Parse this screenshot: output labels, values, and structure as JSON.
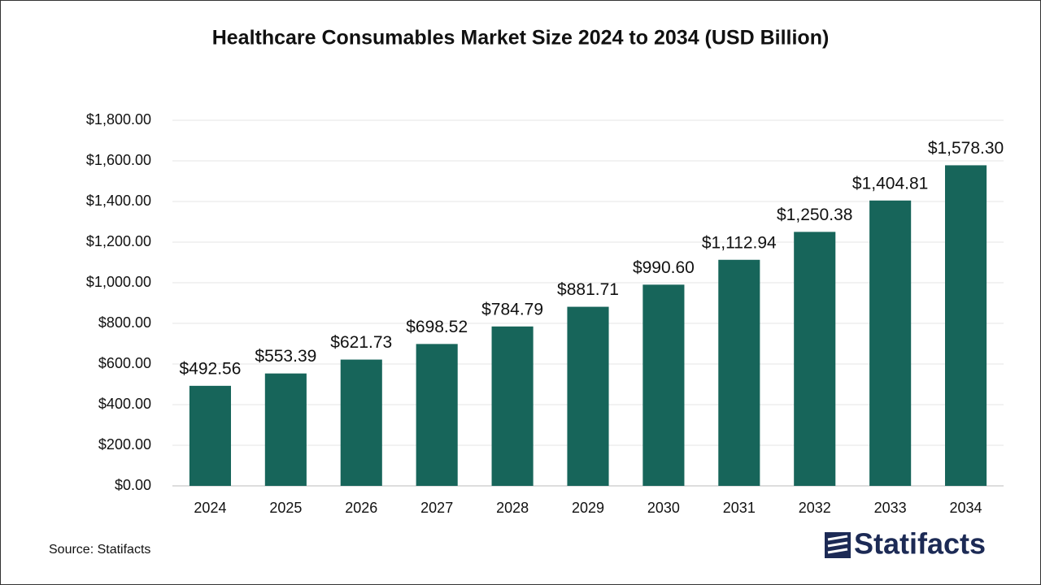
{
  "chart_data": {
    "type": "bar",
    "title": "Healthcare Consumables Market Size 2024 to 2034 (USD Billion)",
    "categories": [
      "2024",
      "2025",
      "2026",
      "2027",
      "2028",
      "2029",
      "2030",
      "2031",
      "2032",
      "2033",
      "2034"
    ],
    "values": [
      492.56,
      553.39,
      621.73,
      698.52,
      784.79,
      881.71,
      990.6,
      1112.94,
      1250.38,
      1404.81,
      1578.3
    ],
    "value_labels": [
      "$492.56",
      "$553.39",
      "$621.73",
      "$698.52",
      "$784.79",
      "$881.71",
      "$990.60",
      "$1,112.94",
      "$1,250.38",
      "$1,404.81",
      "$1,578.30"
    ],
    "color": "#17655a",
    "ylim": [
      0,
      1800
    ],
    "yticks": [
      {
        "value": 0,
        "label": "$0.00"
      },
      {
        "value": 200,
        "label": "$200.00"
      },
      {
        "value": 400,
        "label": "$400.00"
      },
      {
        "value": 600,
        "label": "$600.00"
      },
      {
        "value": 800,
        "label": "$800.00"
      },
      {
        "value": 1000,
        "label": "$1,000.00"
      },
      {
        "value": 1200,
        "label": "$1,200.00"
      },
      {
        "value": 1400,
        "label": "$1,400.00"
      },
      {
        "value": 1600,
        "label": "$1,600.00"
      },
      {
        "value": 1800,
        "label": "$1,800.00"
      }
    ],
    "grid": true,
    "source": "Source: Statifacts",
    "brand": "Statifacts"
  }
}
